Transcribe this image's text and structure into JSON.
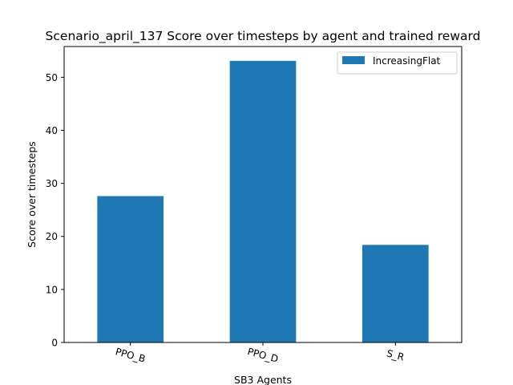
{
  "chart_data": {
    "type": "bar",
    "title": "Scenario_april_137 Score over timesteps by agent and trained reward",
    "xlabel": "SB3 Agents",
    "ylabel": "Score over timesteps",
    "categories": [
      "PPO_B",
      "PPO_D",
      "S_R"
    ],
    "series": [
      {
        "name": "IncreasingFlat",
        "values": [
          27.6,
          53.1,
          18.4
        ],
        "color": "#1f77b4"
      }
    ],
    "ylim": [
      0,
      55.8
    ],
    "yticks": [
      "0",
      "10",
      "20",
      "30",
      "40",
      "50"
    ],
    "x_tick_rotation_deg": -15,
    "grid": false,
    "legend_position": "top-right"
  }
}
